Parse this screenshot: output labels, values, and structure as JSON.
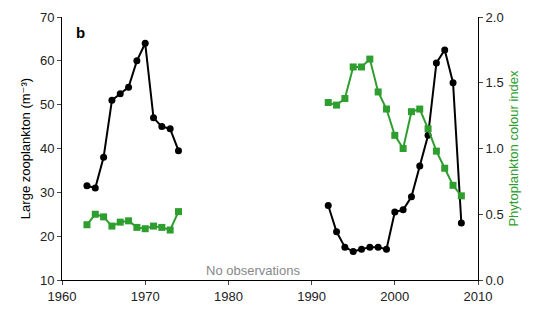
{
  "chart_data": {
    "type": "line",
    "xlabel": null,
    "ylabel": "Large zooplankton (m⁻³)",
    "y2label": "Phytoplankton colour index",
    "annotations": [
      "b",
      "No observations"
    ],
    "x": [
      1963,
      1964,
      1965,
      1966,
      1967,
      1968,
      1969,
      1970,
      1971,
      1972,
      1973,
      1974,
      1983,
      1992,
      1993,
      1994,
      1995,
      1996,
      1997,
      1998,
      1999,
      2000,
      2001,
      2002,
      2003,
      2004,
      2005,
      2006,
      2007,
      2008
    ],
    "series": [
      {
        "color": "#000000",
        "marker": "circle",
        "axis": "y",
        "values": [
          31.5,
          31,
          38,
          51,
          52.5,
          54,
          60,
          64,
          47,
          45,
          44.5,
          39.5,
          null,
          27,
          21,
          17.5,
          16.5,
          17,
          17.5,
          17.5,
          17,
          25.5,
          26,
          29,
          36,
          43,
          59.5,
          62.5,
          55,
          23
        ]
      },
      {
        "color": "#2e9e2e",
        "marker": "square",
        "axis": "y2",
        "values": [
          0.42,
          0.5,
          0.48,
          0.41,
          0.44,
          0.45,
          0.4,
          0.39,
          0.41,
          0.4,
          0.38,
          0.52,
          null,
          1.35,
          1.33,
          1.38,
          1.62,
          1.62,
          1.68,
          1.43,
          1.3,
          1.1,
          1.0,
          1.28,
          1.3,
          1.15,
          0.98,
          0.85,
          0.72,
          0.64
        ]
      }
    ],
    "xlim": [
      1960,
      2010
    ],
    "xticks": [
      1960,
      1970,
      1980,
      1990,
      2000,
      2010
    ],
    "ylim": [
      10,
      70
    ],
    "yticks": [
      10,
      20,
      30,
      40,
      50,
      60,
      70
    ],
    "y2lim": [
      0,
      2
    ],
    "y2ticks": [
      {
        "value": 0,
        "label": "0.0"
      },
      0.5,
      {
        "value": 1,
        "label": "1.0"
      },
      1.5,
      {
        "value": 2,
        "label": "2.0"
      }
    ],
    "grid": false
  }
}
